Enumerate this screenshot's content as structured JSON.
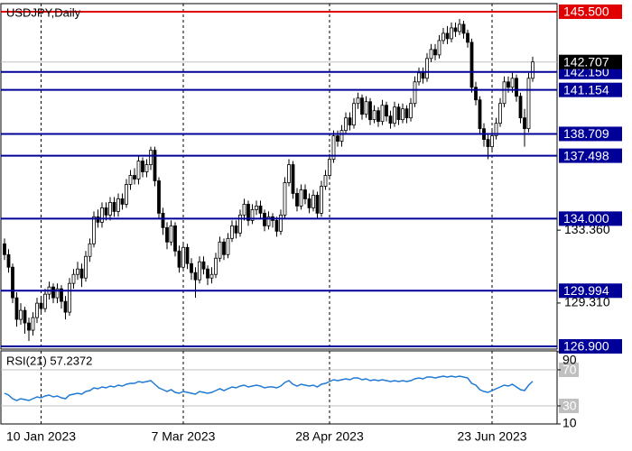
{
  "chart_data": [
    {
      "type": "candlestick",
      "title": "USDJPY,Daily",
      "open": [
        132.6,
        132.0,
        131.3,
        129.6,
        128.4,
        128.9,
        128.2,
        127.8,
        128.5,
        129.3,
        129.0,
        129.8,
        130.2,
        129.6,
        130.1,
        129.4,
        128.8,
        130.4,
        130.9,
        131.2,
        130.7,
        131.9,
        132.6,
        134.1,
        133.8,
        134.6,
        134.2,
        134.9,
        134.4,
        135.1,
        134.8,
        135.9,
        136.4,
        136.2,
        137.2,
        136.6,
        137.0,
        137.8,
        136.1,
        134.3,
        133.5,
        132.7,
        133.6,
        132.2,
        131.3,
        132.4,
        131.5,
        131.0,
        130.6,
        131.6,
        131.2,
        130.7,
        130.9,
        131.8,
        132.7,
        132.0,
        132.9,
        133.6,
        133.2,
        134.2,
        134.8,
        133.9,
        134.5,
        134.7,
        134.3,
        133.6,
        134.1,
        133.9,
        133.3,
        134.2,
        136.0,
        137.0,
        135.4,
        134.7,
        135.6,
        135.1,
        134.6,
        135.3,
        134.3,
        135.8,
        136.4,
        137.3,
        138.6,
        138.3,
        138.9,
        139.6,
        139.2,
        140.4,
        140.7,
        139.8,
        140.5,
        139.5,
        140.0,
        139.4,
        140.3,
        139.7,
        139.3,
        140.2,
        139.5,
        140.1,
        139.6,
        140.4,
        141.6,
        142.1,
        141.8,
        142.9,
        143.4,
        143.1,
        143.9,
        144.3,
        144.0,
        144.6,
        144.4,
        144.8,
        144.3,
        143.8,
        141.3,
        140.6,
        139.0,
        138.4,
        138.0,
        138.6,
        139.3,
        140.4,
        141.6,
        141.3,
        141.8,
        140.8,
        139.6,
        139.0,
        141.8
      ],
      "high": [
        132.9,
        132.3,
        131.5,
        129.9,
        129.3,
        129.1,
        128.5,
        128.8,
        129.6,
        129.7,
        130.1,
        130.5,
        130.4,
        130.4,
        130.3,
        129.7,
        130.7,
        131.2,
        131.6,
        131.5,
        132.2,
        132.9,
        134.4,
        134.5,
        134.9,
        134.9,
        135.2,
        135.2,
        135.4,
        135.4,
        136.2,
        136.7,
        136.8,
        137.5,
        137.4,
        137.3,
        138.0,
        138.0,
        136.3,
        134.6,
        133.8,
        133.9,
        133.8,
        132.5,
        132.7,
        132.6,
        131.8,
        131.3,
        131.9,
        131.9,
        131.4,
        131.3,
        132.1,
        133.0,
        132.9,
        133.2,
        133.9,
        133.9,
        134.5,
        135.1,
        135.0,
        134.8,
        135.0,
        135.0,
        134.5,
        134.4,
        134.3,
        134.1,
        134.5,
        136.3,
        137.3,
        137.2,
        135.7,
        135.9,
        135.9,
        135.4,
        135.6,
        135.5,
        136.1,
        136.7,
        137.6,
        138.9,
        138.9,
        139.2,
        139.9,
        139.9,
        140.7,
        141.0,
        140.9,
        140.8,
        140.7,
        140.3,
        140.2,
        140.6,
        140.5,
        140.0,
        140.5,
        140.4,
        140.4,
        140.3,
        140.7,
        141.9,
        142.4,
        142.4,
        143.2,
        143.7,
        143.7,
        144.2,
        144.6,
        144.7,
        144.9,
        144.9,
        145.1,
        145.0,
        144.5,
        144.0,
        141.6,
        140.8,
        139.3,
        138.7,
        138.9,
        139.6,
        140.7,
        141.9,
        141.9,
        142.1,
        142.0,
        141.0,
        140.1,
        142.1,
        143.0
      ],
      "low": [
        131.7,
        131.0,
        129.3,
        128.0,
        128.1,
        127.6,
        127.2,
        127.5,
        128.2,
        128.7,
        128.8,
        129.5,
        129.3,
        129.3,
        129.0,
        128.4,
        128.6,
        130.1,
        130.6,
        130.2,
        130.5,
        131.6,
        132.4,
        133.5,
        133.5,
        133.9,
        133.9,
        134.1,
        134.1,
        134.5,
        134.6,
        135.6,
        135.9,
        135.9,
        136.3,
        136.3,
        136.7,
        135.8,
        134.0,
        133.1,
        132.3,
        132.5,
        131.9,
        131.0,
        131.1,
        131.2,
        130.6,
        129.6,
        130.4,
        130.9,
        130.3,
        130.4,
        130.7,
        131.6,
        131.7,
        131.8,
        132.7,
        132.9,
        133.0,
        133.9,
        133.6,
        133.7,
        134.2,
        134.0,
        133.3,
        133.4,
        133.5,
        133.0,
        133.1,
        134.0,
        135.8,
        135.1,
        134.4,
        134.5,
        134.8,
        134.3,
        134.4,
        134.0,
        134.1,
        135.6,
        136.2,
        137.1,
        138.0,
        138.0,
        138.7,
        138.9,
        139.0,
        140.1,
        139.5,
        139.6,
        139.2,
        139.3,
        139.1,
        139.2,
        139.4,
        139.0,
        139.1,
        139.2,
        139.3,
        139.3,
        139.4,
        140.2,
        141.4,
        141.5,
        141.6,
        142.7,
        142.8,
        142.9,
        143.7,
        143.7,
        143.8,
        144.1,
        144.2,
        144.0,
        143.5,
        141.0,
        140.3,
        138.7,
        138.0,
        137.3,
        137.7,
        138.4,
        139.1,
        140.2,
        141.0,
        141.0,
        140.5,
        139.3,
        138.0,
        138.8,
        141.6
      ],
      "close": [
        132.0,
        131.3,
        129.6,
        128.4,
        128.9,
        128.2,
        127.8,
        128.5,
        129.3,
        129.0,
        129.8,
        130.2,
        129.6,
        130.1,
        129.4,
        128.8,
        130.4,
        130.9,
        131.2,
        130.7,
        131.9,
        132.6,
        134.1,
        133.8,
        134.6,
        134.2,
        134.9,
        134.4,
        135.1,
        134.8,
        135.9,
        136.4,
        136.2,
        137.2,
        136.6,
        137.0,
        137.8,
        136.1,
        134.3,
        133.5,
        132.7,
        133.6,
        132.2,
        131.3,
        132.4,
        131.5,
        131.0,
        130.6,
        131.6,
        131.2,
        130.7,
        130.9,
        131.8,
        132.7,
        132.0,
        132.9,
        133.6,
        133.2,
        134.2,
        134.8,
        133.9,
        134.5,
        134.7,
        134.3,
        133.6,
        134.1,
        133.9,
        133.3,
        134.2,
        136.0,
        137.0,
        135.4,
        134.7,
        135.6,
        135.1,
        134.6,
        135.3,
        134.3,
        135.8,
        136.4,
        137.3,
        138.6,
        138.3,
        138.9,
        139.6,
        139.2,
        140.4,
        140.7,
        139.8,
        140.5,
        139.5,
        140.0,
        139.4,
        140.3,
        139.7,
        139.3,
        140.2,
        139.5,
        140.1,
        139.6,
        140.4,
        141.6,
        142.1,
        141.8,
        142.9,
        143.4,
        143.1,
        143.9,
        144.3,
        144.0,
        144.6,
        144.4,
        144.8,
        144.3,
        143.8,
        141.3,
        140.6,
        139.0,
        138.4,
        138.0,
        138.6,
        139.3,
        140.4,
        141.6,
        141.3,
        141.8,
        140.8,
        139.6,
        139.0,
        141.8,
        142.707
      ],
      "ylim": [
        126.75,
        145.95
      ],
      "yticks": [
        {
          "value": 129.31,
          "label": "129.310"
        },
        {
          "value": 133.36,
          "label": "133.360"
        }
      ],
      "xticks": [
        {
          "value": 9,
          "label": "10 Jan 2023"
        },
        {
          "value": 44,
          "label": "7 Mar 2023"
        },
        {
          "value": 80,
          "label": "28 Apr 2023"
        },
        {
          "value": 120,
          "label": "23 Jun 2023"
        }
      ],
      "grid": true,
      "levels": [
        {
          "value": 145.5,
          "label": "145.500",
          "color": "#e00000"
        },
        {
          "value": 142.15,
          "label": "142.150",
          "color": "#000099"
        },
        {
          "value": 141.154,
          "label": "141.154",
          "color": "#000099"
        },
        {
          "value": 138.709,
          "label": "138.709",
          "color": "#000099"
        },
        {
          "value": 137.498,
          "label": "137.498",
          "color": "#000099"
        },
        {
          "value": 134,
          "label": "134.000",
          "color": "#000099"
        },
        {
          "value": 129.994,
          "label": "129.994",
          "color": "#000099"
        },
        {
          "value": 126.9,
          "label": "126.900",
          "color": "#000099"
        }
      ],
      "last_price": {
        "value": 142.707,
        "label": "142.707"
      },
      "up_color": "#ffffff",
      "down_color": "#000000"
    },
    {
      "type": "line",
      "title": "RSI(21) 57.2372",
      "color": "#1e7ad6",
      "values": [
        44,
        42,
        38,
        36,
        38,
        37,
        36,
        38,
        40,
        39,
        41,
        42,
        40,
        41,
        39,
        38,
        42,
        43,
        44,
        43,
        46,
        47,
        50,
        49,
        51,
        50,
        52,
        51,
        53,
        52,
        54,
        55,
        55,
        57,
        56,
        57,
        58,
        54,
        50,
        48,
        46,
        48,
        45,
        44,
        46,
        45,
        44,
        43,
        46,
        45,
        44,
        45,
        47,
        49,
        47,
        49,
        51,
        50,
        52,
        53,
        51,
        52,
        53,
        52,
        50,
        51,
        51,
        50,
        52,
        56,
        58,
        54,
        52,
        54,
        53,
        52,
        53,
        51,
        54,
        55,
        57,
        59,
        58,
        59,
        60,
        59,
        61,
        61,
        59,
        60,
        58,
        59,
        58,
        59,
        58,
        57,
        58,
        57,
        58,
        57,
        58,
        60,
        61,
        60,
        62,
        62,
        61,
        62,
        63,
        62,
        63,
        62,
        63,
        62,
        61,
        55,
        53,
        48,
        46,
        45,
        47,
        49,
        51,
        53,
        52,
        54,
        51,
        48,
        47,
        53,
        57.2372
      ],
      "ylim": [
        10,
        91
      ],
      "yticks": [
        10,
        30,
        70,
        90
      ],
      "levels": [
        30,
        70
      ]
    }
  ]
}
